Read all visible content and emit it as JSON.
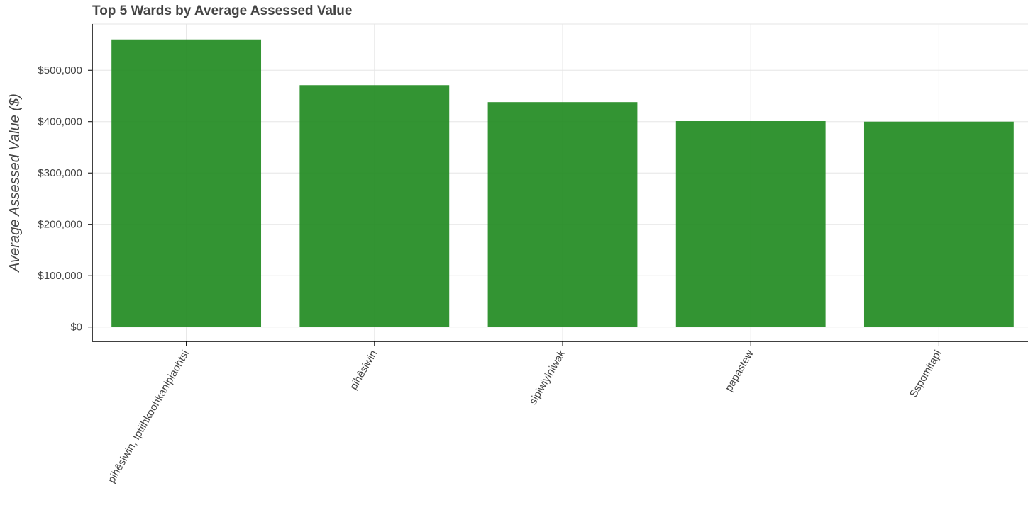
{
  "chart_data": {
    "type": "bar",
    "title": "Top 5 Wards by Average Assessed Value",
    "xlabel": "",
    "ylabel": "Average Assessed Value ($)",
    "categories": [
      "pihêsiwin, Iptiihkoohkanipiaohtsi",
      "pihêsiwin",
      "sipiwiyiniwak",
      "papastew",
      "Sspomitapi"
    ],
    "values": [
      560000,
      471000,
      438000,
      401000,
      400000
    ],
    "ylim": [
      -28000,
      590000
    ],
    "yticks": [
      0,
      100000,
      200000,
      300000,
      400000,
      500000
    ],
    "ytick_labels": [
      "$0",
      "$100,000",
      "$200,000",
      "$300,000",
      "$400,000",
      "$500,000"
    ],
    "bar_color": "#228b22",
    "grid": true,
    "legend": "none"
  }
}
